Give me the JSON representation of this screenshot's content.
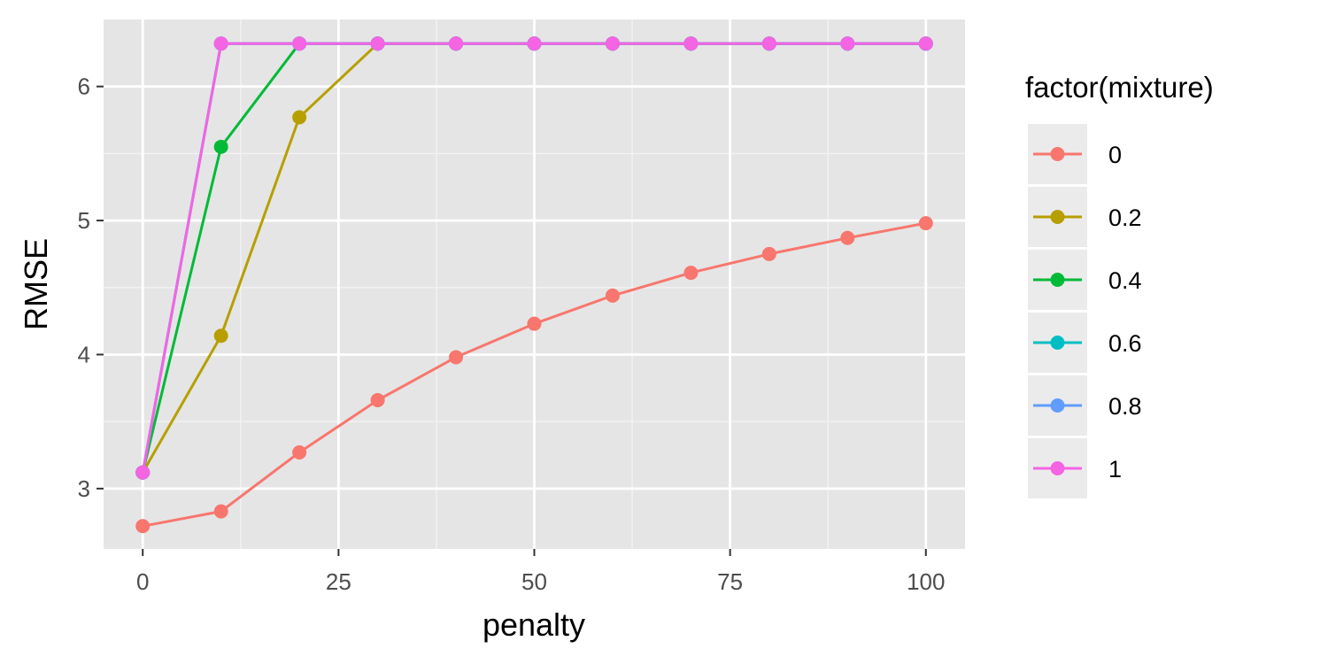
{
  "chart_data": {
    "type": "line",
    "x_label": "penalty",
    "y_label": "RMSE",
    "xlim": [
      -5,
      105
    ],
    "ylim": [
      2.55,
      6.5
    ],
    "x_ticks": [
      0,
      25,
      50,
      75,
      100
    ],
    "x_tick_labels": [
      "0",
      "25",
      "50",
      "75",
      "100"
    ],
    "y_ticks": [
      3,
      4,
      5,
      6
    ],
    "y_tick_labels": [
      "3",
      "4",
      "5",
      "6"
    ],
    "grid": true,
    "panel_background": "#e5e5e5",
    "legend": {
      "title": "factor(mixture)",
      "position": "right"
    },
    "x": [
      0,
      10,
      20,
      30,
      40,
      50,
      60,
      70,
      80,
      90,
      100
    ],
    "series": [
      {
        "name": "0",
        "color": "#F8766D",
        "values": [
          2.72,
          2.83,
          3.27,
          3.66,
          3.98,
          4.23,
          4.44,
          4.61,
          4.75,
          4.87,
          4.98
        ]
      },
      {
        "name": "0.2",
        "color": "#B79F00",
        "values": [
          3.12,
          4.14,
          5.77,
          6.32,
          6.32,
          6.32,
          6.32,
          6.32,
          6.32,
          6.32,
          6.32
        ]
      },
      {
        "name": "0.4",
        "color": "#00BA38",
        "values": [
          3.12,
          5.55,
          6.32,
          6.32,
          6.32,
          6.32,
          6.32,
          6.32,
          6.32,
          6.32,
          6.32
        ]
      },
      {
        "name": "0.6",
        "color": "#00BFC4",
        "values": [
          3.12,
          6.32,
          6.32,
          6.32,
          6.32,
          6.32,
          6.32,
          6.32,
          6.32,
          6.32,
          6.32
        ]
      },
      {
        "name": "0.8",
        "color": "#619CFF",
        "values": [
          3.12,
          6.32,
          6.32,
          6.32,
          6.32,
          6.32,
          6.32,
          6.32,
          6.32,
          6.32,
          6.32
        ]
      },
      {
        "name": "1",
        "color": "#F564E3",
        "values": [
          3.12,
          6.32,
          6.32,
          6.32,
          6.32,
          6.32,
          6.32,
          6.32,
          6.32,
          6.32,
          6.32
        ]
      }
    ]
  }
}
